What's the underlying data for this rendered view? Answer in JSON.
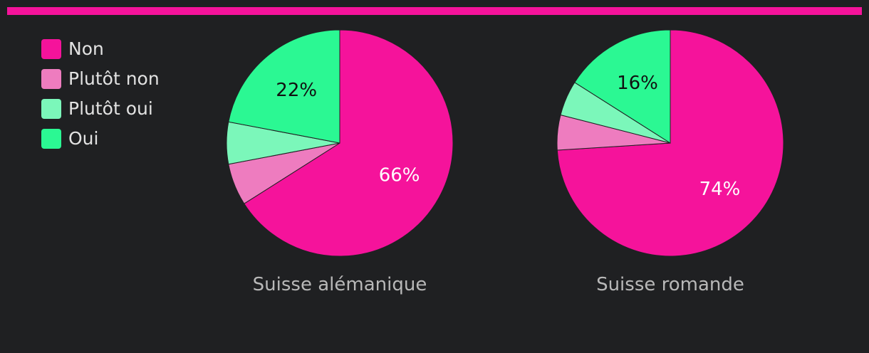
{
  "colors": {
    "accent_bar": "#f5139b",
    "background": "#1f2022"
  },
  "legend": [
    {
      "label": "Non",
      "color": "#f5139b"
    },
    {
      "label": "Plutôt non",
      "color": "#ee7cbf"
    },
    {
      "label": "Plutôt oui",
      "color": "#7bf7ba"
    },
    {
      "label": "Oui",
      "color": "#2bf893"
    }
  ],
  "chart_data": [
    {
      "type": "pie",
      "title": "Suisse alémanique",
      "labels": [
        "Non",
        "Plutôt non",
        "Plutôt oui",
        "Oui"
      ],
      "values": [
        66,
        6,
        6,
        22
      ],
      "data_labels": [
        "66%",
        "",
        "",
        "22%"
      ],
      "colors": [
        "#f5139b",
        "#ee7cbf",
        "#7bf7ba",
        "#2bf893"
      ],
      "start_angle": "12 o'clock",
      "direction": "clockwise"
    },
    {
      "type": "pie",
      "title": "Suisse romande",
      "labels": [
        "Non",
        "Plutôt non",
        "Plutôt oui",
        "Oui"
      ],
      "values": [
        74,
        5,
        5,
        16
      ],
      "data_labels": [
        "74%",
        "",
        "",
        "16%"
      ],
      "colors": [
        "#f5139b",
        "#ee7cbf",
        "#7bf7ba",
        "#2bf893"
      ],
      "start_angle": "12 o'clock",
      "direction": "clockwise"
    }
  ]
}
